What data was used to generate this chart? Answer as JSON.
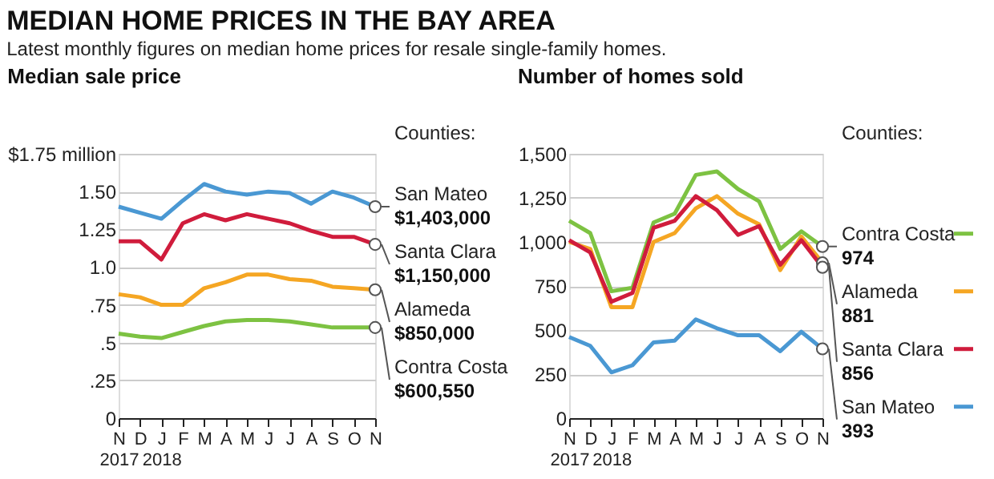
{
  "chart_data": [
    {
      "type": "line",
      "title": "MEDIAN HOME PRICES IN THE BAY AREA",
      "subtitle": "Latest monthly figures on median home prices for resale single-family homes.",
      "ylabel": "Median sale price",
      "legend_title": "Counties:",
      "legend": "right",
      "grid": "y",
      "marker": "none",
      "line_style": "solid",
      "categories": [
        "N\n2017",
        "D",
        "J\n2018",
        "F",
        "M",
        "A",
        "M",
        "J",
        "J",
        "A",
        "S",
        "O",
        "N"
      ],
      "ylim": [
        0,
        1.75
      ],
      "yticks": [
        0,
        {
          "value": 0.25,
          "label": ".25"
        },
        {
          "value": 0.5,
          "label": ".5"
        },
        {
          "value": 0.75,
          "label": ".75"
        },
        {
          "value": 1,
          "label": "1.0"
        },
        1.25,
        {
          "value": 1.5,
          "label": "1.50"
        },
        {
          "value": 1.75,
          "label": "$1.75 million"
        }
      ],
      "annotations": [
        "$1,403,000",
        "$1,150,000",
        "$850,000",
        "$600,550"
      ],
      "series": [
        {
          "name": "San Mateo",
          "color": "#4a98d3",
          "values": [
            1.4,
            1.36,
            1.32,
            1.44,
            1.55,
            1.5,
            1.48,
            1.5,
            1.49,
            1.42,
            1.5,
            1.46,
            1.4
          ]
        },
        {
          "name": "Santa Clara",
          "color": "#d01c3c",
          "values": [
            1.17,
            1.17,
            1.05,
            1.29,
            1.35,
            1.31,
            1.35,
            1.32,
            1.29,
            1.24,
            1.2,
            1.2,
            1.15
          ]
        },
        {
          "name": "Alameda",
          "color": "#f5a623",
          "values": [
            0.82,
            0.8,
            0.75,
            0.75,
            0.86,
            0.9,
            0.95,
            0.95,
            0.92,
            0.91,
            0.87,
            0.86,
            0.85
          ]
        },
        {
          "name": "Contra Costa",
          "color": "#7dc242",
          "values": [
            0.56,
            0.54,
            0.53,
            0.57,
            0.61,
            0.64,
            0.65,
            0.65,
            0.64,
            0.62,
            0.6,
            0.6,
            0.6
          ]
        }
      ]
    },
    {
      "type": "line",
      "ylabel": "Number of homes sold",
      "legend_title": "Counties:",
      "legend": "right",
      "grid": "y",
      "marker": "none",
      "line_style": "solid",
      "categories": [
        "N\n2017",
        "D",
        "J\n2018",
        "F",
        "M",
        "A",
        "M",
        "J",
        "J",
        "A",
        "S",
        "O",
        "N"
      ],
      "ylim": [
        0,
        1500
      ],
      "yticks": [
        0,
        250,
        500,
        750,
        {
          "value": 1000,
          "label": "1,000"
        },
        {
          "value": 1250,
          "label": "1,250"
        },
        {
          "value": 1500,
          "label": "1,500"
        }
      ],
      "series": [
        {
          "name": "Contra Costa",
          "color": "#7dc242",
          "values": [
            1120,
            1050,
            720,
            740,
            1110,
            1160,
            1380,
            1400,
            1300,
            1230,
            960,
            1060,
            974
          ],
          "value_labels": [
            null,
            null,
            null,
            null,
            null,
            null,
            null,
            null,
            null,
            null,
            null,
            null,
            "974"
          ]
        },
        {
          "name": "Alameda",
          "color": "#f5a623",
          "values": [
            1000,
            960,
            630,
            630,
            1000,
            1050,
            1190,
            1260,
            1160,
            1100,
            840,
            1030,
            881
          ],
          "value_labels": [
            null,
            null,
            null,
            null,
            null,
            null,
            null,
            null,
            null,
            null,
            null,
            null,
            "881"
          ]
        },
        {
          "name": "Santa Clara",
          "color": "#d01c3c",
          "values": [
            1010,
            940,
            660,
            710,
            1080,
            1120,
            1260,
            1180,
            1040,
            1090,
            870,
            1010,
            856
          ],
          "value_labels": [
            null,
            null,
            null,
            null,
            null,
            null,
            null,
            null,
            null,
            null,
            null,
            null,
            "856"
          ]
        },
        {
          "name": "San Mateo",
          "color": "#4a98d3",
          "values": [
            460,
            410,
            260,
            300,
            430,
            440,
            560,
            510,
            470,
            470,
            380,
            490,
            393
          ],
          "value_labels": [
            null,
            null,
            null,
            null,
            null,
            null,
            null,
            null,
            null,
            null,
            null,
            null,
            "393"
          ]
        }
      ]
    }
  ]
}
